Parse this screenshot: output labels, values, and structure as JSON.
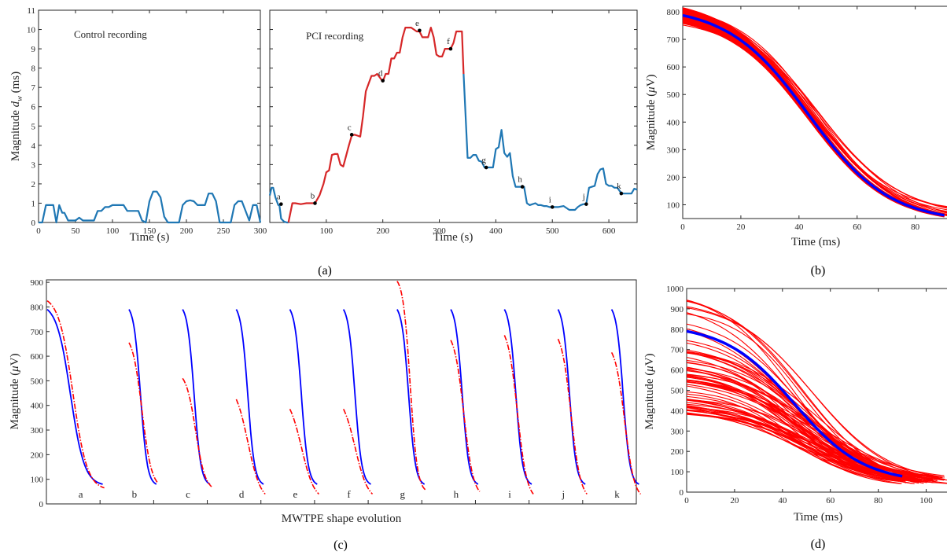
{
  "panel_labels": [
    "(a)",
    "(b)",
    "(c)",
    "(d)"
  ],
  "chart_data": [
    {
      "id": "a-control",
      "type": "line",
      "title": "Control recording",
      "xlabel": "Time (s)",
      "ylabel": "Magnitude d_w (ms)",
      "ylabel_main": "Magnitude ",
      "ylabel_sym": "d",
      "ylabel_sub": "w",
      "ylabel_unit": " (ms)",
      "xlim": [
        0,
        300
      ],
      "ylim": [
        0,
        11
      ],
      "xticks": [
        0,
        50,
        100,
        150,
        200,
        250,
        300
      ],
      "yticks": [
        0,
        1,
        2,
        3,
        4,
        5,
        6,
        7,
        8,
        9,
        10,
        11
      ],
      "series": [
        {
          "color": "#1f77b4",
          "x": [
            0,
            5,
            10,
            15,
            20,
            24,
            28,
            32,
            35,
            40,
            45,
            50,
            55,
            60,
            63,
            67,
            72,
            75,
            80,
            85,
            90,
            95,
            100,
            103,
            107,
            115,
            120,
            125,
            130,
            135,
            140,
            145,
            150,
            155,
            160,
            165,
            170,
            175,
            180,
            190,
            195,
            200,
            205,
            210,
            215,
            225,
            230,
            235,
            240,
            245,
            250,
            255,
            260,
            265,
            270,
            275,
            285,
            290,
            295,
            300
          ],
          "y": [
            0,
            0,
            0.9,
            0.9,
            0.9,
            0,
            0.9,
            0.5,
            0.5,
            0.1,
            0.1,
            0.1,
            0.25,
            0.1,
            0.1,
            0.1,
            0.1,
            0.1,
            0.6,
            0.6,
            0.8,
            0.8,
            0.9,
            0.9,
            0.9,
            0.9,
            0.6,
            0.6,
            0.6,
            0.6,
            0.1,
            0,
            1.1,
            1.6,
            1.6,
            1.3,
            0.3,
            0,
            0,
            0,
            0.9,
            1.1,
            1.15,
            1.1,
            0.9,
            0.9,
            1.5,
            1.5,
            1.1,
            0,
            0,
            0,
            0,
            0.9,
            1.1,
            1.1,
            0.1,
            0.9,
            0.9,
            0
          ]
        }
      ]
    },
    {
      "id": "a-pci",
      "type": "line",
      "title": "PCI recording",
      "xlabel": "Time (s)",
      "xlim": [
        0,
        650
      ],
      "ylim": [
        0,
        11
      ],
      "xticks": [
        100,
        200,
        300,
        400,
        500,
        600
      ],
      "series": [
        {
          "color": "#1f77b4",
          "x": [
            0,
            3,
            6,
            10,
            15,
            17,
            20,
            25,
            30,
            33
          ],
          "y": [
            1.4,
            1.8,
            1.8,
            1.3,
            0.9,
            0.9,
            0.2,
            0.05,
            0,
            0
          ]
        },
        {
          "color": "#d62728",
          "x": [
            33,
            40,
            45,
            55,
            65,
            70,
            75,
            80,
            88,
            95,
            100,
            105,
            110,
            115,
            120,
            125,
            130,
            140,
            145,
            150,
            155,
            160,
            165,
            170,
            175,
            180,
            185,
            190,
            195,
            200,
            205,
            210,
            215,
            220,
            225,
            230,
            235,
            240,
            245,
            250,
            255,
            260,
            265,
            270,
            275,
            280,
            285,
            290,
            295,
            300,
            305,
            310,
            315,
            320,
            325,
            330,
            335,
            340,
            343
          ],
          "y": [
            0,
            1.0,
            1.0,
            0.95,
            1.0,
            1.0,
            1.0,
            1.0,
            1.4,
            2.0,
            2.6,
            2.7,
            3.5,
            3.55,
            3.55,
            3.0,
            2.9,
            4.0,
            4.5,
            4.55,
            4.5,
            4.45,
            5.5,
            6.8,
            7.2,
            7.6,
            7.6,
            7.7,
            7.5,
            7.3,
            7.7,
            7.7,
            8.5,
            8.5,
            8.8,
            8.8,
            9.6,
            10.1,
            10.1,
            10.1,
            10.0,
            9.9,
            9.9,
            9.6,
            9.6,
            9.6,
            10.1,
            9.6,
            8.7,
            8.6,
            8.6,
            9.0,
            9.0,
            9.0,
            9.3,
            9.9,
            9.9,
            9.9,
            7.7
          ]
        },
        {
          "color": "#1f77b4",
          "x": [
            343,
            350,
            355,
            360,
            365,
            370,
            375,
            380,
            385,
            390,
            395,
            400,
            405,
            410,
            415,
            420,
            425,
            430,
            435,
            440,
            445,
            450,
            455,
            460,
            465,
            470,
            475,
            480,
            485,
            490,
            495,
            500,
            510,
            520,
            530,
            540,
            545,
            550,
            555,
            560,
            565,
            570,
            575,
            580,
            585,
            590,
            595,
            600,
            605,
            610,
            615,
            620,
            625,
            630,
            640,
            645,
            650
          ],
          "y": [
            7.7,
            3.35,
            3.35,
            3.5,
            3.5,
            3.2,
            3.15,
            2.85,
            2.85,
            2.85,
            2.85,
            3.8,
            3.9,
            4.8,
            3.6,
            3.4,
            3.6,
            2.4,
            1.85,
            1.85,
            1.85,
            1.85,
            1.0,
            0.9,
            0.95,
            1.0,
            0.9,
            0.9,
            0.85,
            0.85,
            0.8,
            0.8,
            0.8,
            0.85,
            0.65,
            0.65,
            0.8,
            0.9,
            0.95,
            0.95,
            1.8,
            1.85,
            1.9,
            2.5,
            2.75,
            2.8,
            2.0,
            1.9,
            1.9,
            1.8,
            1.8,
            1.6,
            1.5,
            1.5,
            1.5,
            1.75,
            1.7
          ]
        }
      ],
      "points": [
        {
          "label": "a",
          "x": 20,
          "y": 0.95
        },
        {
          "label": "b",
          "x": 80,
          "y": 1.0
        },
        {
          "label": "c",
          "x": 145,
          "y": 4.55
        },
        {
          "label": "d",
          "x": 200,
          "y": 7.35
        },
        {
          "label": "e",
          "x": 265,
          "y": 9.95
        },
        {
          "label": "f",
          "x": 320,
          "y": 9.0
        },
        {
          "label": "g",
          "x": 383,
          "y": 2.85
        },
        {
          "label": "h",
          "x": 447,
          "y": 1.85
        },
        {
          "label": "i",
          "x": 500,
          "y": 0.8
        },
        {
          "label": "j",
          "x": 560,
          "y": 0.95
        },
        {
          "label": "k",
          "x": 622,
          "y": 1.5
        }
      ]
    },
    {
      "id": "b",
      "type": "line",
      "xlabel": "Time (ms)",
      "ylabel": "Magnitude (μV)",
      "ylabel_main": "Magnitude (",
      "ylabel_sym": "μ",
      "ylabel_unit": "V)",
      "xlim": [
        0,
        92
      ],
      "ylim": [
        50,
        820
      ],
      "xticks": [
        0,
        20,
        40,
        60,
        80
      ],
      "yticks": [
        100,
        200,
        300,
        400,
        500,
        600,
        700,
        800
      ],
      "template": {
        "color": "#0000ff",
        "start_value": 787,
        "end_value": 62,
        "x_end": 90
      },
      "individual_beats": {
        "color": "#ff0000",
        "start_values": [
          815,
          810,
          805,
          800,
          795,
          790,
          782,
          775,
          768,
          760,
          752
        ],
        "end_values": [
          60,
          58,
          64,
          70,
          74,
          80,
          85,
          88,
          92,
          68,
          62
        ],
        "x_end": 92
      }
    },
    {
      "id": "c",
      "type": "line",
      "xlabel": "MWTPE shape evolution",
      "ylabel": "Magnitude (μV)",
      "ylabel_main": "Magnitude (",
      "ylabel_sym": "μ",
      "ylabel_unit": "V)",
      "ylim": [
        0,
        910
      ],
      "yticks": [
        0,
        100,
        200,
        300,
        400,
        500,
        600,
        700,
        800,
        900
      ],
      "categories": [
        "a",
        "b",
        "c",
        "d",
        "e",
        "f",
        "g",
        "h",
        "i",
        "j",
        "k"
      ],
      "template": {
        "color": "#0000ff",
        "start_value": 790,
        "end_value": 80
      },
      "shapes": [
        {
          "label": "a",
          "start_value": 825,
          "end_value": 65
        },
        {
          "label": "b",
          "start_value": 655,
          "end_value": 85
        },
        {
          "label": "c",
          "start_value": 510,
          "end_value": 70
        },
        {
          "label": "d",
          "start_value": 425,
          "end_value": 40
        },
        {
          "label": "e",
          "start_value": 385,
          "end_value": 40
        },
        {
          "label": "f",
          "start_value": 385,
          "end_value": 40
        },
        {
          "label": "g",
          "start_value": 905,
          "end_value": 55
        },
        {
          "label": "h",
          "start_value": 665,
          "end_value": 50
        },
        {
          "label": "i",
          "start_value": 685,
          "end_value": 40
        },
        {
          "label": "j",
          "start_value": 670,
          "end_value": 40
        },
        {
          "label": "k",
          "start_value": 615,
          "end_value": 40
        }
      ],
      "shape_color": "#ff0000"
    },
    {
      "id": "d",
      "type": "line",
      "xlabel": "Time (ms)",
      "ylabel": "Magnitude (μV)",
      "ylabel_main": "Magnitude (",
      "ylabel_sym": "μ",
      "ylabel_unit": "V)",
      "xlim": [
        0,
        110
      ],
      "ylim": [
        0,
        1000
      ],
      "xticks": [
        0,
        20,
        40,
        60,
        80,
        100
      ],
      "yticks": [
        0,
        100,
        200,
        300,
        400,
        500,
        600,
        700,
        800,
        900,
        1000
      ],
      "template": {
        "color": "#0000ff",
        "start_value": 790,
        "end_value": 78,
        "x_end": 90
      },
      "individual_beats": {
        "color": "#ff0000",
        "start_min": 380,
        "start_max": 980,
        "count": 70,
        "end_min": 40,
        "end_max": 110,
        "x_end_min": 88,
        "x_end_max": 110
      }
    }
  ]
}
